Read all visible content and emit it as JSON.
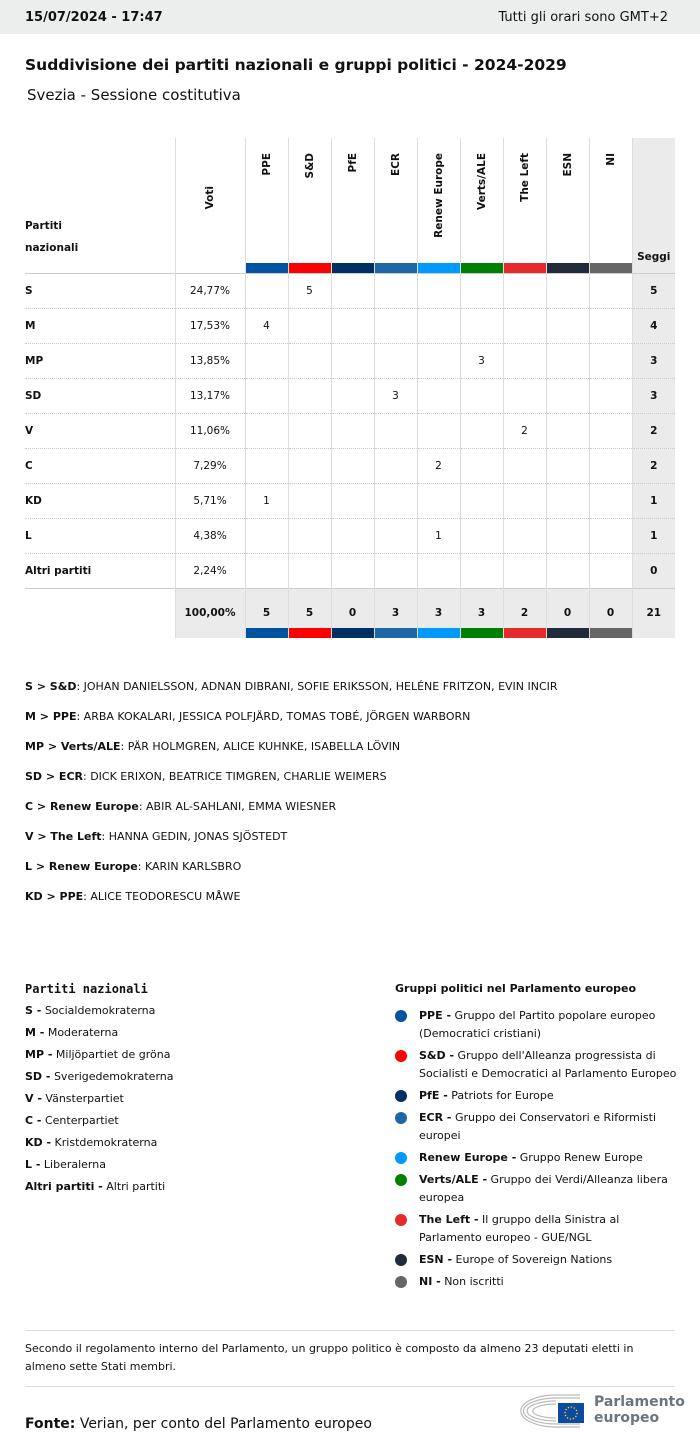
{
  "topbar": {
    "datetime": "15/07/2024 - 17:47",
    "timezone": "Tutti gli orari sono GMT+2"
  },
  "title": "Suddivisione dei partiti nazionali e gruppi politici - 2024-2029",
  "subtitle": "Svezia - Sessione costitutiva",
  "table": {
    "party_header": [
      "Partiti",
      "nazionali"
    ],
    "votes_header": "Voti",
    "seats_header": "Seggi",
    "groups": [
      {
        "label": "PPE",
        "color": "#0053a0"
      },
      {
        "label": "S&D",
        "color": "#ff0000"
      },
      {
        "label": "PfE",
        "color": "#002f63"
      },
      {
        "label": "ECR",
        "color": "#1d67a6"
      },
      {
        "label": "Renew Europe",
        "color": "#0099ff"
      },
      {
        "label": "Verts/ALE",
        "color": "#008000"
      },
      {
        "label": "The Left",
        "color": "#e42a2a"
      },
      {
        "label": "ESN",
        "color": "#212b3a"
      },
      {
        "label": "NI",
        "color": "#666666"
      }
    ],
    "rows": [
      {
        "party": "S",
        "votes": "24,77%",
        "cells": [
          "",
          "5",
          "",
          "",
          "",
          "",
          "",
          "",
          ""
        ],
        "seats": "5"
      },
      {
        "party": "M",
        "votes": "17,53%",
        "cells": [
          "4",
          "",
          "",
          "",
          "",
          "",
          "",
          "",
          ""
        ],
        "seats": "4"
      },
      {
        "party": "MP",
        "votes": "13,85%",
        "cells": [
          "",
          "",
          "",
          "",
          "",
          "3",
          "",
          "",
          ""
        ],
        "seats": "3"
      },
      {
        "party": "SD",
        "votes": "13,17%",
        "cells": [
          "",
          "",
          "",
          "3",
          "",
          "",
          "",
          "",
          ""
        ],
        "seats": "3"
      },
      {
        "party": "V",
        "votes": "11,06%",
        "cells": [
          "",
          "",
          "",
          "",
          "",
          "",
          "2",
          "",
          ""
        ],
        "seats": "2"
      },
      {
        "party": "C",
        "votes": "7,29%",
        "cells": [
          "",
          "",
          "",
          "",
          "2",
          "",
          "",
          "",
          ""
        ],
        "seats": "2"
      },
      {
        "party": "KD",
        "votes": "5,71%",
        "cells": [
          "1",
          "",
          "",
          "",
          "",
          "",
          "",
          "",
          ""
        ],
        "seats": "1"
      },
      {
        "party": "L",
        "votes": "4,38%",
        "cells": [
          "",
          "",
          "",
          "",
          "1",
          "",
          "",
          "",
          ""
        ],
        "seats": "1"
      },
      {
        "party": "Altri partiti",
        "votes": "2,24%",
        "cells": [
          "",
          "",
          "",
          "",
          "",
          "",
          "",
          "",
          ""
        ],
        "seats": "0"
      }
    ],
    "total": {
      "votes": "100,00%",
      "cells": [
        "5",
        "5",
        "0",
        "3",
        "3",
        "3",
        "2",
        "0",
        "0"
      ],
      "seats": "21"
    }
  },
  "members": [
    {
      "k": "S > S&D",
      "v": ": JOHAN DANIELSSON, ADNAN DIBRANI, SOFIE ERIKSSON, HELÉNE FRITZON, EVIN INCIR"
    },
    {
      "k": "M > PPE",
      "v": ": ARBA KOKALARI, JESSICA POLFJÄRD, TOMAS TOBÉ, JÖRGEN WARBORN"
    },
    {
      "k": "MP > Verts/ALE",
      "v": ": PÄR HOLMGREN, ALICE KUHNKE, ISABELLA LÖVIN"
    },
    {
      "k": "SD > ECR",
      "v": ": DICK ERIXON, BEATRICE TIMGREN, CHARLIE WEIMERS"
    },
    {
      "k": "C > Renew Europe",
      "v": ": ABIR AL-SAHLANI, EMMA WIESNER"
    },
    {
      "k": "V > The Left",
      "v": ": HANNA GEDIN, JONAS SJÖSTEDT"
    },
    {
      "k": "L > Renew Europe",
      "v": ": KARIN KARLSBRO"
    },
    {
      "k": "KD > PPE",
      "v": ": ALICE TEODORESCU MÅWE"
    }
  ],
  "national_legend": {
    "title": "Partiti nazionali",
    "items": [
      {
        "k": "S -",
        "v": " Socialdemokraterna"
      },
      {
        "k": "M -",
        "v": " Moderaterna"
      },
      {
        "k": "MP -",
        "v": " Miljöpartiet de gröna"
      },
      {
        "k": "SD -",
        "v": " Sverigedemokraterna"
      },
      {
        "k": "V -",
        "v": " Vänsterpartiet"
      },
      {
        "k": "C -",
        "v": " Centerpartiet"
      },
      {
        "k": "KD -",
        "v": " Kristdemokraterna"
      },
      {
        "k": "L -",
        "v": " Liberalerna"
      },
      {
        "k": "Altri partiti -",
        "v": " Altri partiti"
      }
    ]
  },
  "group_legend": {
    "title": "Gruppi politici nel Parlamento europeo",
    "items": [
      {
        "k": "PPE -",
        "v": " Gruppo del Partito popolare europeo (Democratici cristiani)"
      },
      {
        "k": "S&D -",
        "v": " Gruppo dell'Alleanza progressista di Socialisti e Democratici al Parlamento Europeo"
      },
      {
        "k": "PfE -",
        "v": " Patriots for Europe"
      },
      {
        "k": "ECR -",
        "v": " Gruppo dei Conservatori e Riformisti europei"
      },
      {
        "k": "Renew Europe -",
        "v": " Gruppo Renew Europe"
      },
      {
        "k": "Verts/ALE -",
        "v": " Gruppo dei Verdi/Alleanza libera europea"
      },
      {
        "k": "The Left -",
        "v": " Il gruppo della Sinistra al Parlamento europeo - GUE/NGL"
      },
      {
        "k": "ESN -",
        "v": " Europe of Sovereign Nations"
      },
      {
        "k": "NI -",
        "v": " Non iscritti"
      }
    ]
  },
  "footnote": "Secondo il regolamento interno del Parlamento, un gruppo politico è composto da almeno 23 deputati eletti in almeno sette Stati membri.",
  "source": {
    "label": "Fonte:",
    "text": " Verian, per conto del Parlamento europeo"
  },
  "logo": {
    "line1": "Parlamento",
    "line2": "europeo"
  }
}
